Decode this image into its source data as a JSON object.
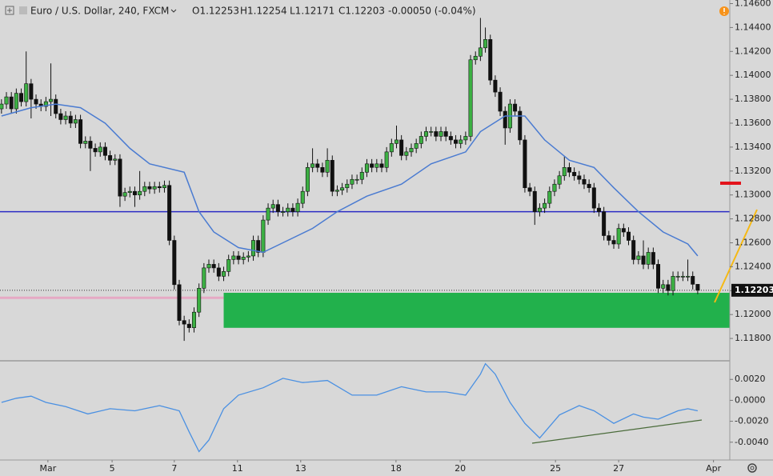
{
  "chart_data": [
    {
      "type": "candlestick",
      "title": "Euro / U.S. Dollar, 240, FXCM",
      "legend_values": [
        "O1.12253",
        "H1.12254",
        "L1.12171",
        "C1.12203",
        "-0.00050 (-0.04%)"
      ],
      "up_color": "#3cb043",
      "down_color": "#111111",
      "xlim": [
        -0.3,
        147.5
      ],
      "xticks": [
        {
          "value": 9.4,
          "label": "Mar"
        },
        {
          "value": 22.4,
          "label": "5"
        },
        {
          "value": 35,
          "label": "7"
        },
        {
          "value": 47.8,
          "label": "11"
        },
        {
          "value": 60.6,
          "label": "13"
        },
        {
          "value": 79.9,
          "label": "18"
        },
        {
          "value": 92.9,
          "label": "20"
        },
        {
          "value": 112.2,
          "label": "25"
        },
        {
          "value": 125,
          "label": "27"
        },
        {
          "value": 144.2,
          "label": "Apr"
        }
      ],
      "ylim": [
        1.1162,
        1.1463
      ],
      "yticks": [
        {
          "value": 1.146,
          "label": "1.14600"
        },
        {
          "value": 1.144,
          "label": "1.14400"
        },
        {
          "value": 1.142,
          "label": "1.14200"
        },
        {
          "value": 1.14,
          "label": "1.14000"
        },
        {
          "value": 1.138,
          "label": "1.13800"
        },
        {
          "value": 1.136,
          "label": "1.13600"
        },
        {
          "value": 1.134,
          "label": "1.13400"
        },
        {
          "value": 1.132,
          "label": "1.13200"
        },
        {
          "value": 1.13,
          "label": "1.13000"
        },
        {
          "value": 1.128,
          "label": "1.12800"
        },
        {
          "value": 1.126,
          "label": "1.12600"
        },
        {
          "value": 1.124,
          "label": "1.12400"
        },
        {
          "value": 1.122,
          "label": "1.12200"
        },
        {
          "value": 1.12,
          "label": "1.12000"
        },
        {
          "value": 1.118,
          "label": "1.11800"
        }
      ],
      "open": [
        1.1372,
        1.1376,
        1.1382,
        1.1372,
        1.1385,
        1.1378,
        1.1393,
        1.138,
        1.1376,
        1.1374,
        1.1378,
        1.138,
        1.1368,
        1.1363,
        1.1366,
        1.136,
        1.1363,
        1.1343,
        1.1345,
        1.1339,
        1.1336,
        1.134,
        1.1333,
        1.1329,
        1.133,
        1.1299,
        1.1302,
        1.1303,
        1.13,
        1.1303,
        1.1307,
        1.1305,
        1.1307,
        1.1306,
        1.1308,
        1.1262,
        1.1225,
        1.1195,
        1.1192,
        1.1189,
        1.1202,
        1.1222,
        1.1239,
        1.1242,
        1.1239,
        1.1232,
        1.1236,
        1.1246,
        1.1249,
        1.1246,
        1.1248,
        1.1249,
        1.1262,
        1.1252,
        1.1279,
        1.1289,
        1.1292,
        1.1286,
        1.1286,
        1.1289,
        1.1286,
        1.1293,
        1.1303,
        1.1323,
        1.1326,
        1.1323,
        1.1319,
        1.1329,
        1.1303,
        1.1304,
        1.1306,
        1.1309,
        1.1313,
        1.1313,
        1.1319,
        1.1326,
        1.1323,
        1.1326,
        1.1323,
        1.1336,
        1.1343,
        1.1346,
        1.1333,
        1.1336,
        1.1339,
        1.1343,
        1.1349,
        1.1353,
        1.1353,
        1.1349,
        1.1353,
        1.1349,
        1.1346,
        1.1343,
        1.1346,
        1.1349,
        1.1413,
        1.1416,
        1.1423,
        1.143,
        1.1396,
        1.1386,
        1.137,
        1.1356,
        1.1376,
        1.137,
        1.1346,
        1.1306,
        1.1303,
        1.1286,
        1.1289,
        1.1293,
        1.1303,
        1.1309,
        1.1316,
        1.1323,
        1.1319,
        1.1316,
        1.1313,
        1.1309,
        1.1306,
        1.1289,
        1.1286,
        1.1266,
        1.1262,
        1.1259,
        1.1272,
        1.1269,
        1.1262,
        1.1246,
        1.1249,
        1.1242,
        1.1252,
        1.1242,
        1.1222,
        1.1225,
        1.122,
        1.1232,
        1.1232,
        1.1232,
        1.1232,
        1.12253
      ],
      "high": [
        1.138,
        1.1386,
        1.1386,
        1.1389,
        1.1389,
        1.142,
        1.1397,
        1.1384,
        1.138,
        1.1382,
        1.141,
        1.1384,
        1.1372,
        1.137,
        1.137,
        1.1367,
        1.1367,
        1.1349,
        1.1349,
        1.1343,
        1.1344,
        1.1344,
        1.1337,
        1.1334,
        1.1334,
        1.1306,
        1.1307,
        1.1307,
        1.132,
        1.1311,
        1.1311,
        1.1311,
        1.1311,
        1.1312,
        1.1312,
        1.1266,
        1.1229,
        1.1199,
        1.1196,
        1.1206,
        1.1226,
        1.1243,
        1.1246,
        1.1246,
        1.1243,
        1.124,
        1.125,
        1.1253,
        1.1253,
        1.1252,
        1.1253,
        1.1266,
        1.1266,
        1.1283,
        1.1293,
        1.1296,
        1.1296,
        1.129,
        1.1293,
        1.1293,
        1.1297,
        1.1307,
        1.1327,
        1.1339,
        1.133,
        1.1327,
        1.1339,
        1.1333,
        1.1308,
        1.131,
        1.1313,
        1.1317,
        1.1317,
        1.1323,
        1.133,
        1.133,
        1.133,
        1.133,
        1.134,
        1.1347,
        1.1358,
        1.135,
        1.134,
        1.1343,
        1.1347,
        1.1353,
        1.1357,
        1.1357,
        1.1357,
        1.1357,
        1.1357,
        1.1353,
        1.135,
        1.135,
        1.1353,
        1.1417,
        1.142,
        1.1448,
        1.144,
        1.1434,
        1.14,
        1.139,
        1.1374,
        1.138,
        1.138,
        1.1374,
        1.135,
        1.131,
        1.1307,
        1.1293,
        1.1297,
        1.1307,
        1.1313,
        1.132,
        1.1332,
        1.1327,
        1.1323,
        1.132,
        1.1317,
        1.1313,
        1.131,
        1.1293,
        1.129,
        1.127,
        1.1266,
        1.1276,
        1.1276,
        1.1273,
        1.1266,
        1.1253,
        1.1262,
        1.1256,
        1.1256,
        1.1246,
        1.1229,
        1.1229,
        1.1236,
        1.1236,
        1.1236,
        1.1246,
        1.1236,
        1.12254
      ],
      "low": [
        1.1368,
        1.1372,
        1.1368,
        1.1368,
        1.1374,
        1.1374,
        1.1364,
        1.1372,
        1.137,
        1.137,
        1.1366,
        1.1364,
        1.1359,
        1.1359,
        1.1356,
        1.1356,
        1.1339,
        1.1339,
        1.132,
        1.1332,
        1.1332,
        1.1329,
        1.1325,
        1.1325,
        1.129,
        1.1295,
        1.1298,
        1.129,
        1.1296,
        1.1299,
        1.1301,
        1.1301,
        1.1302,
        1.1302,
        1.1258,
        1.1221,
        1.1191,
        1.1178,
        1.1185,
        1.1185,
        1.1198,
        1.1218,
        1.1235,
        1.1235,
        1.1228,
        1.1228,
        1.1232,
        1.1242,
        1.1242,
        1.1242,
        1.1244,
        1.1245,
        1.1248,
        1.1248,
        1.1275,
        1.1285,
        1.1282,
        1.1282,
        1.1282,
        1.1282,
        1.1282,
        1.1289,
        1.1299,
        1.1319,
        1.1319,
        1.1315,
        1.1315,
        1.1299,
        1.1299,
        1.13,
        1.1302,
        1.1305,
        1.1309,
        1.1309,
        1.1315,
        1.1319,
        1.1319,
        1.1319,
        1.1319,
        1.1332,
        1.1339,
        1.1329,
        1.1329,
        1.1332,
        1.1335,
        1.1339,
        1.1345,
        1.1349,
        1.1345,
        1.1345,
        1.1345,
        1.1342,
        1.1339,
        1.1339,
        1.1342,
        1.1345,
        1.1409,
        1.1412,
        1.1419,
        1.1392,
        1.1382,
        1.1366,
        1.1342,
        1.1352,
        1.1366,
        1.1342,
        1.1302,
        1.1299,
        1.1275,
        1.1282,
        1.1285,
        1.1289,
        1.1299,
        1.1305,
        1.1312,
        1.1315,
        1.1312,
        1.1309,
        1.1305,
        1.1302,
        1.1285,
        1.1282,
        1.1262,
        1.1258,
        1.1255,
        1.1255,
        1.1265,
        1.1258,
        1.1242,
        1.1242,
        1.1238,
        1.1238,
        1.1238,
        1.1218,
        1.1218,
        1.1216,
        1.1216,
        1.1228,
        1.1228,
        1.1228,
        1.1221,
        1.12171
      ],
      "close": [
        1.1376,
        1.1382,
        1.1372,
        1.1385,
        1.1378,
        1.1393,
        1.138,
        1.1376,
        1.1374,
        1.1378,
        1.138,
        1.1368,
        1.1363,
        1.1366,
        1.136,
        1.1363,
        1.1343,
        1.1345,
        1.1339,
        1.1336,
        1.134,
        1.1333,
        1.1329,
        1.133,
        1.1299,
        1.1302,
        1.1303,
        1.13,
        1.1303,
        1.1307,
        1.1305,
        1.1307,
        1.1306,
        1.1308,
        1.1262,
        1.1225,
        1.1195,
        1.1192,
        1.1189,
        1.1202,
        1.1222,
        1.1239,
        1.1242,
        1.1239,
        1.1232,
        1.1236,
        1.1246,
        1.1249,
        1.1246,
        1.1248,
        1.1249,
        1.1262,
        1.1252,
        1.1279,
        1.1289,
        1.1292,
        1.1286,
        1.1286,
        1.1289,
        1.1286,
        1.1293,
        1.1303,
        1.1323,
        1.1326,
        1.1323,
        1.1319,
        1.1329,
        1.1303,
        1.1304,
        1.1306,
        1.1309,
        1.1313,
        1.1313,
        1.1319,
        1.1326,
        1.1323,
        1.1326,
        1.1323,
        1.1336,
        1.1343,
        1.1346,
        1.1333,
        1.1336,
        1.1339,
        1.1343,
        1.1349,
        1.1353,
        1.1353,
        1.1349,
        1.1353,
        1.1349,
        1.1346,
        1.1343,
        1.1346,
        1.1349,
        1.1413,
        1.1416,
        1.1423,
        1.143,
        1.1396,
        1.1386,
        1.137,
        1.1356,
        1.1376,
        1.137,
        1.1346,
        1.1306,
        1.1303,
        1.1286,
        1.1289,
        1.1293,
        1.1303,
        1.1309,
        1.1316,
        1.1323,
        1.1319,
        1.1316,
        1.1313,
        1.1309,
        1.1306,
        1.1289,
        1.1286,
        1.1266,
        1.1262,
        1.1259,
        1.1272,
        1.1269,
        1.1262,
        1.1246,
        1.1249,
        1.1242,
        1.1252,
        1.1242,
        1.1222,
        1.1225,
        1.122,
        1.1232,
        1.1232,
        1.1232,
        1.1232,
        1.12253,
        1.12203
      ],
      "overlays": [
        {
          "type": "line",
          "color": "#4a7bd1",
          "x": [
            0,
            6,
            11,
            16,
            21,
            26,
            30,
            37,
            40,
            43,
            48,
            53,
            58,
            63,
            68,
            74,
            81,
            87,
            94,
            97,
            102,
            106,
            110,
            115,
            120,
            124,
            129,
            134,
            139,
            141
          ],
          "values": [
            1.1366,
            1.1373,
            1.1376,
            1.1373,
            1.136,
            1.1339,
            1.1326,
            1.1319,
            1.1286,
            1.1269,
            1.1256,
            1.1252,
            1.1262,
            1.1272,
            1.1286,
            1.1299,
            1.1309,
            1.1326,
            1.1336,
            1.1353,
            1.1366,
            1.1366,
            1.1346,
            1.1329,
            1.1323,
            1.1306,
            1.1286,
            1.1269,
            1.1259,
            1.1249
          ]
        }
      ],
      "hlines": [
        {
          "value": 1.1286,
          "color": "#2b2bc4"
        },
        {
          "value": 1.1214,
          "color": "#e5a9c4",
          "x_end": 45
        }
      ],
      "zones": [
        {
          "y": [
            1.11889,
            1.12182
          ],
          "x_start": 45,
          "color": "#22b14c"
        }
      ],
      "last_price": {
        "value": 1.12203,
        "label": "1.12203"
      }
    },
    {
      "type": "line",
      "color": "#4a90e2",
      "xlim": [
        -0.3,
        147.5
      ],
      "x": [
        0,
        3,
        6,
        9,
        13,
        17.5,
        22,
        27,
        32,
        36,
        38,
        40,
        42,
        45,
        48,
        53,
        57,
        61,
        66,
        71,
        76,
        81,
        86,
        90,
        94,
        97,
        98,
        100,
        103,
        106,
        109,
        113,
        117,
        120,
        124,
        128,
        130,
        133,
        137,
        139,
        141
      ],
      "values": [
        -0.0002,
        0.0002,
        0.0004,
        -0.0002,
        -0.0006,
        -0.0013,
        -0.0008,
        -0.001,
        -0.0005,
        -0.001,
        -0.003,
        -0.0049,
        -0.0038,
        -0.0008,
        0.0005,
        0.0012,
        0.0021,
        0.0017,
        0.0019,
        0.0005,
        0.0005,
        0.0013,
        0.0008,
        0.0008,
        0.0005,
        0.0025,
        0.0035,
        0.0025,
        -0.0002,
        -0.0022,
        -0.0036,
        -0.0014,
        -0.0005,
        -0.001,
        -0.0022,
        -0.0013,
        -0.0016,
        -0.0018,
        -0.001,
        -0.0008,
        -0.001
      ],
      "ylim": [
        -0.0057,
        0.0037
      ],
      "yticks": [
        {
          "value": 0.002,
          "label": "0.0020"
        },
        {
          "value": 0,
          "label": "0.0000"
        },
        {
          "value": -0.002,
          "label": "-0.0020"
        },
        {
          "value": -0.004,
          "label": "-0.0040"
        }
      ]
    }
  ]
}
